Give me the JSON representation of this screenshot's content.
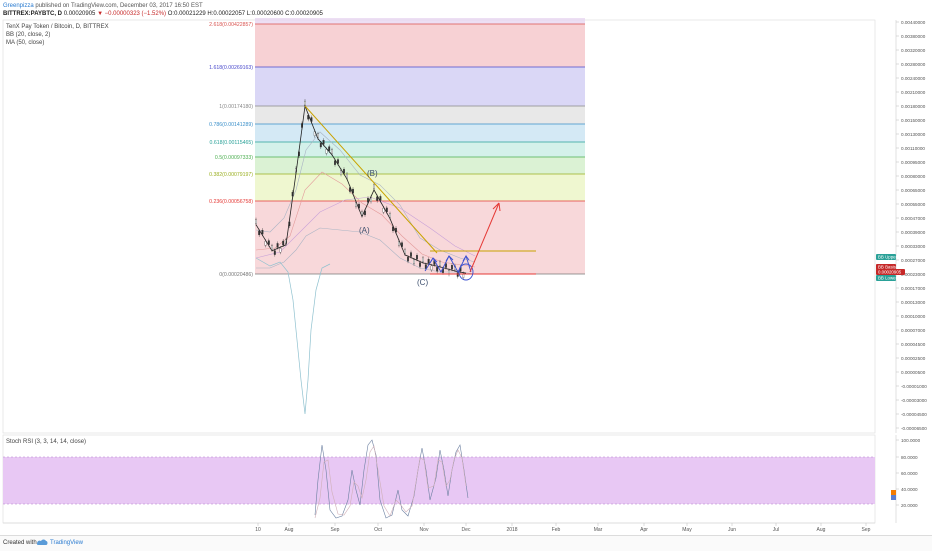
{
  "header": {
    "author": "Greenpizza",
    "published": "published on TradingView.com, December 03, 2017 16:50 EST",
    "symbol": "BITTREX:PAYBTC, D",
    "price": "0.00020905",
    "change": "▼ −0.00000323 (−1.52%)",
    "ohlc": "O:0.00021229 H:0.00022057 L:0.00020600 C:0.00020905"
  },
  "legend": {
    "title": "TenX Pay Token / Bitcoin, D, BITTREX",
    "bb": "BB (20, close, 2)",
    "ma": "MA (50, close)",
    "stoch": "Stoch RSI (3, 3, 14, 14, close)"
  },
  "footer": {
    "created": "Created with",
    "brand": "TradingView"
  },
  "chart_data": {
    "type": "line",
    "main_axis": {
      "scale": "linear",
      "range": [
        -7.4e-05,
        0.00444
      ],
      "tick_labels": [
        "0.00440000",
        "0.00380000",
        "0.00320000",
        "0.00280000",
        "0.00240000",
        "0.00210000",
        "0.00180000",
        "0.00150000",
        "0.00130000",
        "0.00110000",
        "0.00095000",
        "0.00080000",
        "0.00065000",
        "0.00055000",
        "0.00047000",
        "0.00039000",
        "0.00033000",
        "0.00027000",
        "0.00023000",
        "0.00017000",
        "0.00013000",
        "0.00010000",
        "0.00007000",
        "0.00004500",
        "0.00002500",
        "0.00000500",
        "-0.00001000",
        "-0.00003000",
        "-0.00004500",
        "-0.00006500"
      ]
    },
    "x_axis": {
      "tick_labels": [
        "10",
        "Aug",
        "Sep",
        "Oct",
        "Nov",
        "Dec",
        "2018",
        "Feb",
        "Mar",
        "Apr",
        "May",
        "Jun",
        "Jul",
        "Aug",
        "Sep"
      ]
    },
    "fib_levels": [
      {
        "label": "2.618(0.00422857)",
        "value": 0.00422857,
        "color": "#d9534f"
      },
      {
        "label": "1.618(0.00269163)",
        "value": 0.00269163,
        "color": "#4a4acc"
      },
      {
        "label": "1(0.00174180)",
        "value": 0.0017418,
        "color": "#888888"
      },
      {
        "label": "0.786(0.00141289)",
        "value": 0.00141289,
        "color": "#3a8fc9"
      },
      {
        "label": "0.618(0.00115465)",
        "value": 0.00115465,
        "color": "#2aa198"
      },
      {
        "label": "0.5(0.00097333)",
        "value": 0.00097333,
        "color": "#4caf50"
      },
      {
        "label": "0.382(0.00079197)",
        "value": 0.00079197,
        "color": "#9aaf20"
      },
      {
        "label": "0.236(0.00056758)",
        "value": 0.00056758,
        "color": "#e53935"
      },
      {
        "label": "0(0.00020486)",
        "value": 0.00020486,
        "color": "#777777"
      }
    ],
    "fib_zone_colors": [
      "#f6c9cc",
      "#d3d0f4",
      "#e4e4e4",
      "#cce5f3",
      "#cdeee6",
      "#d5f0cc",
      "#ecf6c8",
      "#f7d1d4"
    ],
    "price_series_approx": [
      {
        "x": "Jul 10",
        "y": 0.00045
      },
      {
        "x": "Jul 20",
        "y": 0.00032
      },
      {
        "x": "Aug 1",
        "y": 0.00035
      },
      {
        "x": "Aug 10",
        "y": 0.0008
      },
      {
        "x": "Aug 15",
        "y": 0.00174
      },
      {
        "x": "Aug 25",
        "y": 0.0012
      },
      {
        "x": "Sep 5",
        "y": 0.001
      },
      {
        "x": "Sep 15",
        "y": 0.00075
      },
      {
        "x": "Sep 25",
        "y": 0.00049
      },
      {
        "x": "Oct 5",
        "y": 0.00066
      },
      {
        "x": "Oct 15",
        "y": 0.00048
      },
      {
        "x": "Oct 25",
        "y": 0.0003
      },
      {
        "x": "Nov 5",
        "y": 0.00026
      },
      {
        "x": "Nov 15",
        "y": 0.00024
      },
      {
        "x": "Nov 25",
        "y": 0.00022
      },
      {
        "x": "Dec 3",
        "y": 0.00020905
      }
    ],
    "wave_labels": [
      "(A)",
      "(B)",
      "(C)"
    ],
    "price_badges": [
      {
        "label": "BB Upper",
        "color": "#2aa198"
      },
      {
        "label": "BB Basis",
        "color": "#c62828"
      },
      {
        "label": "0.00020905",
        "color": "#c62828"
      },
      {
        "label": "BB Lower",
        "color": "#2aa198"
      }
    ],
    "stoch_rsi": {
      "tick_labels": [
        "100.0000",
        "80.0000",
        "60.0000",
        "40.0000",
        "20.0000"
      ],
      "band": [
        20,
        80
      ],
      "band_color": "#e8c8f4"
    }
  }
}
